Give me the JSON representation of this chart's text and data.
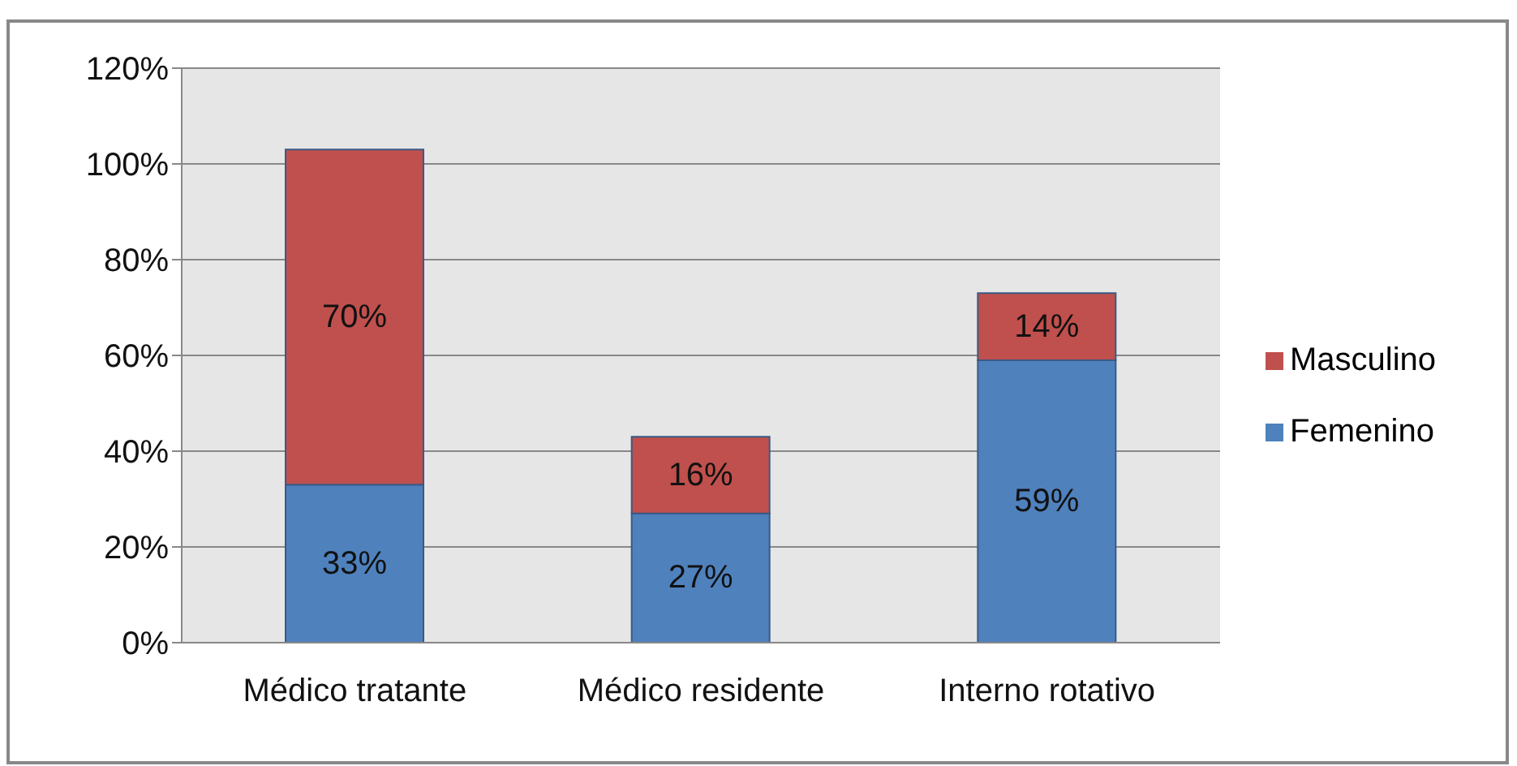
{
  "chart_data": {
    "type": "bar",
    "stacked": true,
    "categories": [
      "Médico tratante",
      "Médico residente",
      "Interno rotativo"
    ],
    "series": [
      {
        "name": "Femenino",
        "color": "#4f81bd",
        "values": [
          33,
          27,
          59
        ],
        "value_labels": [
          "33%",
          "27%",
          "59%"
        ]
      },
      {
        "name": "Masculino",
        "color": "#c0504d",
        "values": [
          70,
          16,
          14
        ],
        "value_labels": [
          "70%",
          "16%",
          "14%"
        ]
      }
    ],
    "ylim": [
      0,
      120
    ],
    "yticks": [
      {
        "value": 0,
        "label": "0%"
      },
      {
        "value": 20,
        "label": "20%"
      },
      {
        "value": 40,
        "label": "40%"
      },
      {
        "value": 60,
        "label": "60%"
      },
      {
        "value": 80,
        "label": "80%"
      },
      {
        "value": 100,
        "label": "100%"
      },
      {
        "value": 120,
        "label": "120%"
      }
    ],
    "grid": "y",
    "legend": "right"
  }
}
